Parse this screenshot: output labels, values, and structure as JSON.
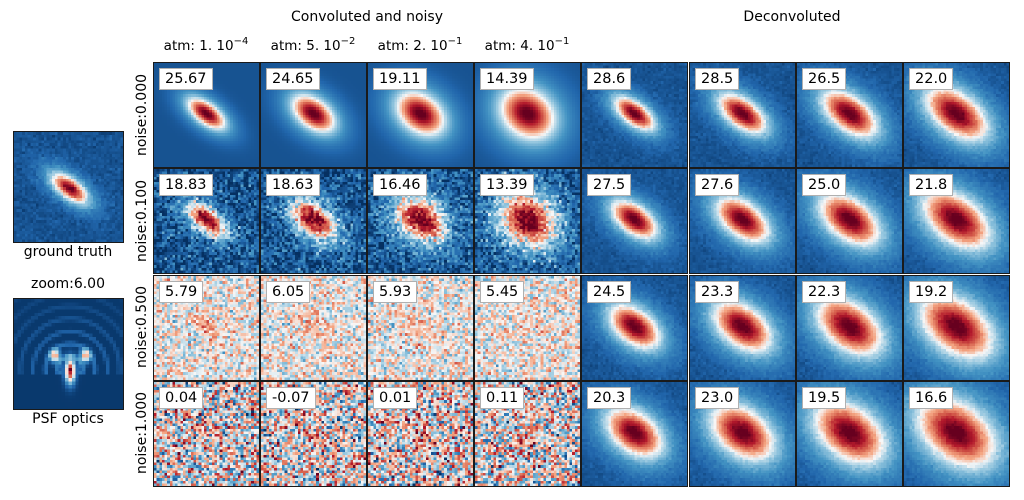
{
  "figure": {
    "title_left": "Convoluted and noisy",
    "title_right": "Deconvoluted",
    "column_labels": [
      {
        "base": "atm: 1.  10",
        "exp": "−4"
      },
      {
        "base": "atm: 5.  10",
        "exp": "−2"
      },
      {
        "base": "atm: 2.  10",
        "exp": "−1"
      },
      {
        "base": "atm: 4.  10",
        "exp": "−1"
      }
    ],
    "row_labels": [
      "noise:0.000",
      "noise:0.100",
      "noise:0.500",
      "noise:1.000"
    ],
    "ground_truth_label": "ground truth",
    "psf_zoom_label": "zoom:6.00",
    "psf_label": "PSF optics",
    "colormap": "RdBu_r",
    "colormap_stops": [
      "#053061",
      "#2166ac",
      "#4393c3",
      "#92c5de",
      "#f7f7f7",
      "#f4a582",
      "#d6604d",
      "#b2182b",
      "#67001f"
    ]
  },
  "chart_data": {
    "type": "heatmap",
    "title": "Convoluted and noisy / Deconvoluted",
    "atmosphere_values": [
      "1e-4",
      "5e-2",
      "2e-1",
      "4e-1"
    ],
    "noise_levels": [
      0.0,
      0.1,
      0.5,
      1.0
    ],
    "convoluted_scores": [
      [
        "25.67",
        "24.65",
        "19.11",
        "14.39"
      ],
      [
        "18.83",
        "18.63",
        "16.46",
        "13.39"
      ],
      [
        "5.79",
        "6.05",
        "5.93",
        "5.45"
      ],
      [
        "0.04",
        "-0.07",
        "0.01",
        "0.11"
      ]
    ],
    "deconvoluted_scores": [
      [
        "28.6",
        "28.5",
        "26.5",
        "22.0"
      ],
      [
        "27.5",
        "27.6",
        "25.0",
        "21.8"
      ],
      [
        "24.5",
        "23.3",
        "22.3",
        "19.2"
      ],
      [
        "20.3",
        "23.0",
        "19.5",
        "16.6"
      ]
    ]
  }
}
